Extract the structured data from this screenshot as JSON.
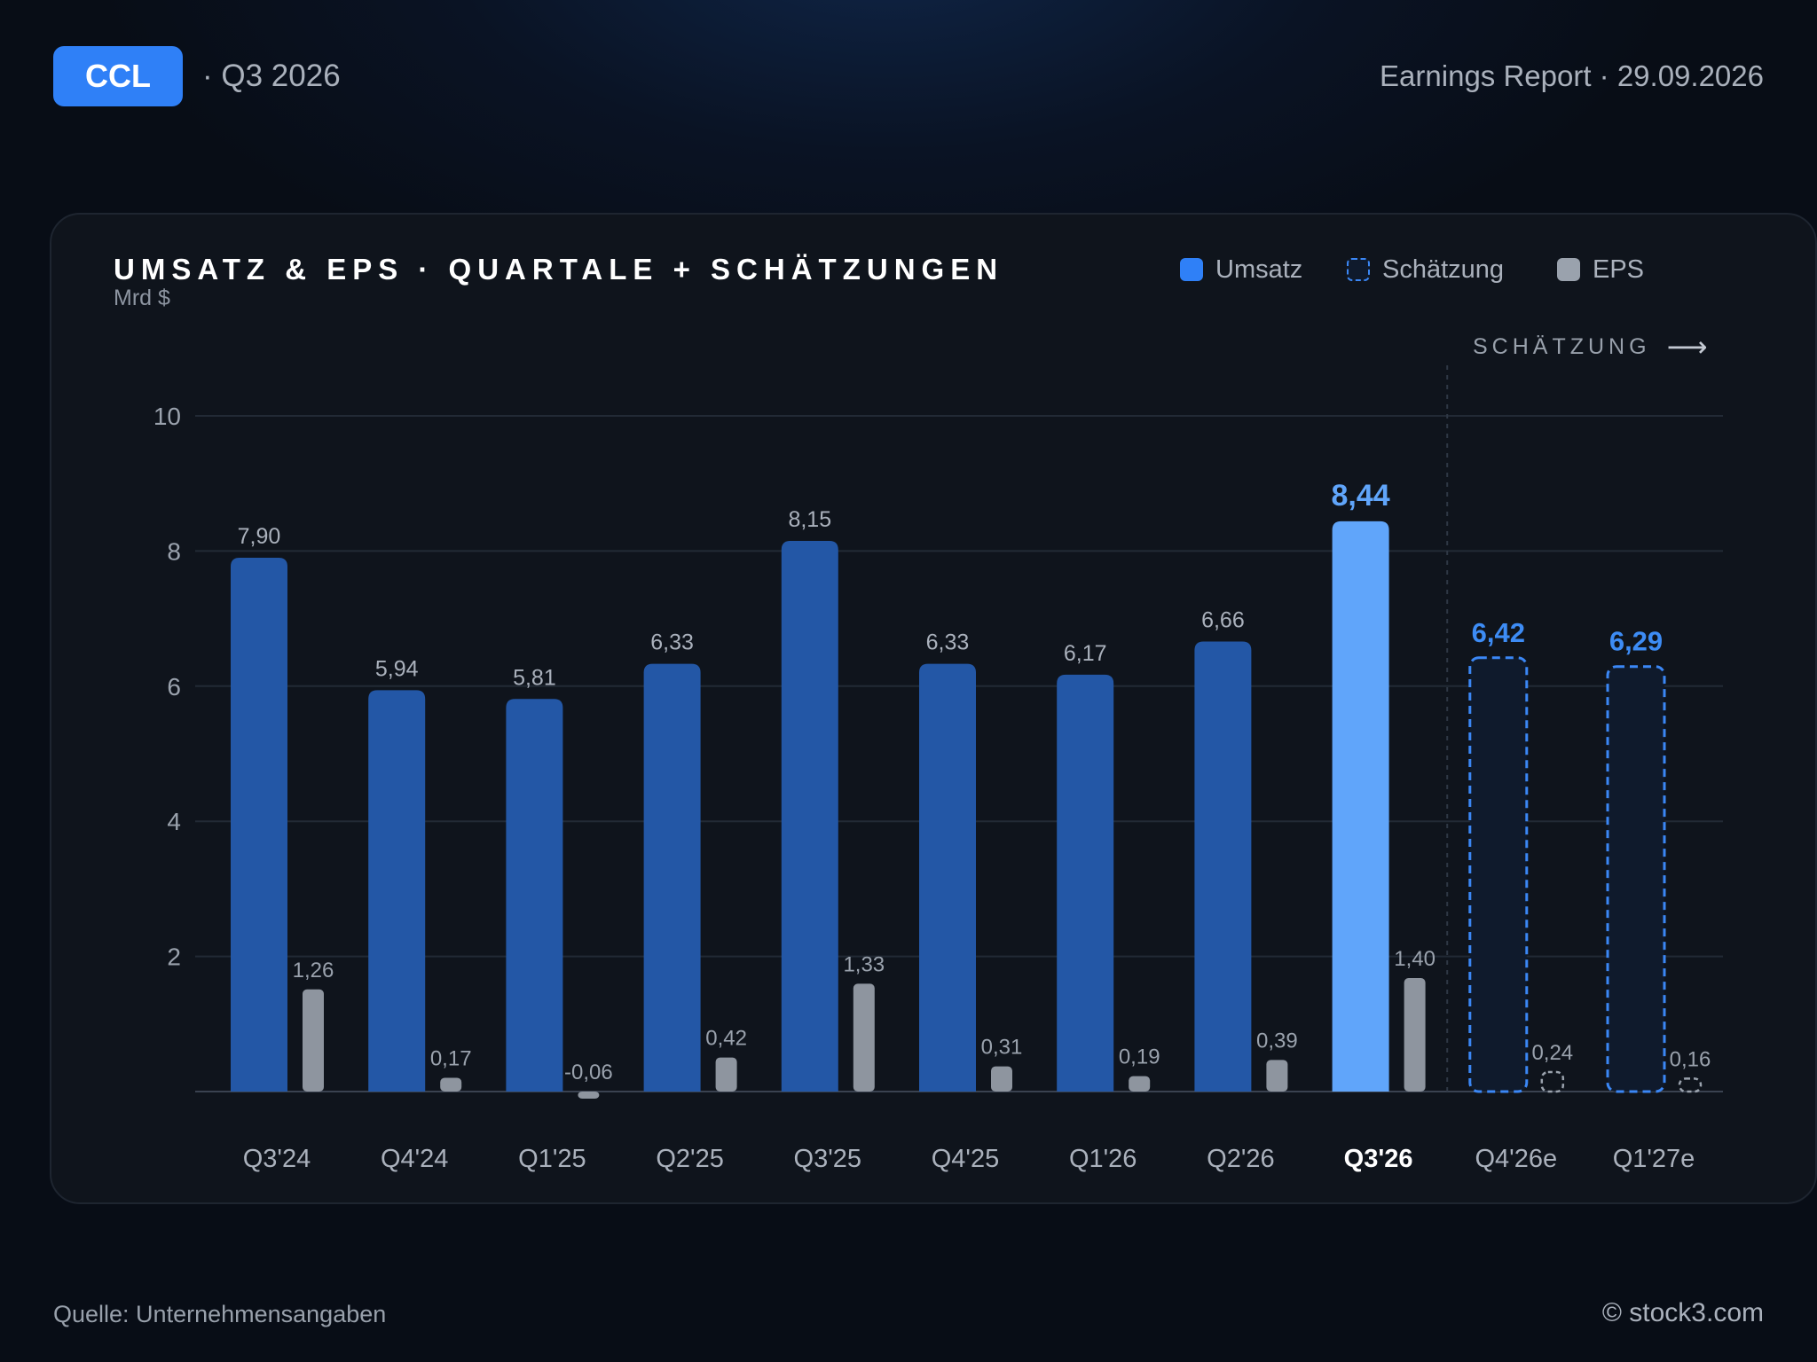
{
  "header": {
    "ticker": "CCL",
    "period": "· Q3 2026",
    "report": "Earnings Report · 29.09.2026"
  },
  "card": {
    "title": "UMSATZ & EPS · QUARTALE + SCHÄTZUNGEN",
    "unit": "Mrd $",
    "estimate_note": "SCHÄTZUNG",
    "legend": {
      "revenue": "Umsatz",
      "estimate": "Schätzung",
      "eps": "EPS"
    }
  },
  "footer": {
    "source": "Quelle: Unternehmensangaben",
    "copyright": "© stock3.com"
  },
  "colors": {
    "revenue": "#2357a6",
    "revenue_current": "#60a5fa",
    "estimate_border": "#3b87f5",
    "estimate_label": "#3d8cf5",
    "eps": "#8e959f"
  },
  "chart_data": {
    "type": "bar",
    "title": "UMSATZ & EPS · QUARTALE + SCHÄTZUNGEN",
    "ylabel": "Mrd $",
    "ylim": [
      0,
      10
    ],
    "yticks": [
      2,
      4,
      6,
      8,
      10
    ],
    "grid": true,
    "legend_position": "top-right",
    "categories": [
      "Q3'24",
      "Q4'24",
      "Q1'25",
      "Q2'25",
      "Q3'25",
      "Q4'25",
      "Q1'26",
      "Q2'26",
      "Q3'26",
      "Q4'26e",
      "Q1'27e"
    ],
    "current_index": 8,
    "estimate_start_index": 9,
    "series": [
      {
        "name": "Umsatz",
        "values": [
          7.9,
          5.94,
          5.81,
          6.33,
          8.15,
          6.33,
          6.17,
          6.66,
          8.44,
          6.42,
          6.29
        ],
        "labels": [
          "7,90",
          "5,94",
          "5,81",
          "6,33",
          "8,15",
          "6,33",
          "6,17",
          "6,66",
          "8,44",
          "6,42",
          "6,29"
        ]
      },
      {
        "name": "EPS",
        "values": [
          1.26,
          0.17,
          -0.06,
          0.42,
          1.33,
          0.31,
          0.19,
          0.39,
          1.4,
          0.24,
          0.16
        ],
        "labels": [
          "1,26",
          "0,17",
          "-0,06",
          "0,42",
          "1,33",
          "0,31",
          "0,19",
          "0,39",
          "1,40",
          "0,24",
          "0,16"
        ]
      }
    ]
  }
}
